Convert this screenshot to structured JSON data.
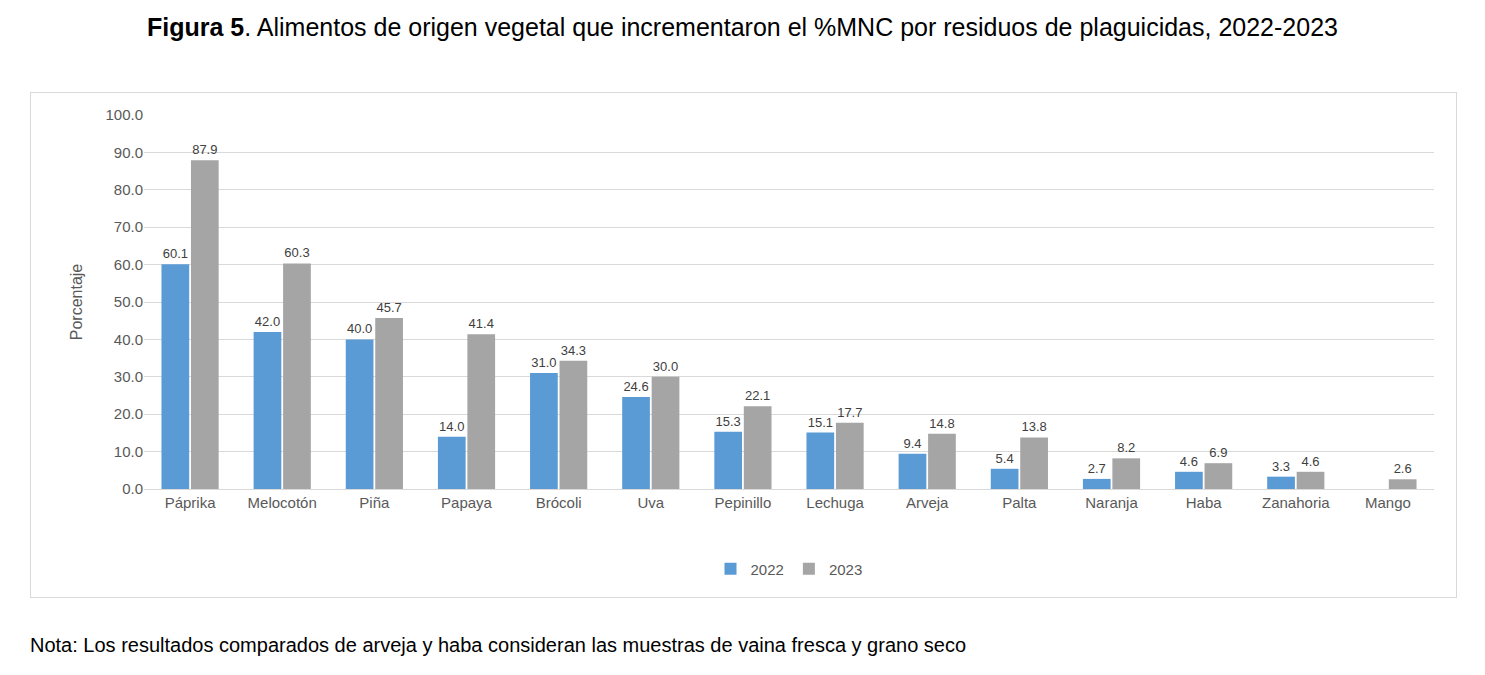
{
  "chart_data": {
    "type": "bar",
    "title": "Figura 5. Alimentos de origen vegetal que incrementaron el %MNC por residuos de plaguicidas, 2022-2023",
    "y_label": "Porcentaje",
    "annotations": [
      "Nota: Los resultados comparados de arveja y haba consideran las muestras de vaina fresca y grano seco"
    ],
    "categories": [
      "Páprika",
      "Melocotón",
      "Piña",
      "Papaya",
      "Brócoli",
      "Uva",
      "Pepinillo",
      "Lechuga",
      "Arveja",
      "Palta",
      "Naranja",
      "Haba",
      "Zanahoria",
      "Mango"
    ],
    "series": [
      {
        "name": "2022",
        "color": "#5b9bd5",
        "values": [
          60.1,
          42.0,
          40.0,
          14.0,
          31.0,
          24.6,
          15.3,
          15.1,
          9.4,
          5.4,
          2.7,
          4.6,
          3.3,
          null
        ],
        "value_labels": [
          "60.1",
          "42.0",
          "40.0",
          "14.0",
          "31.0",
          "24.6",
          "15.3",
          "15.1",
          "9.4",
          "5.4",
          "2.7",
          "4.6",
          "3.3",
          null
        ]
      },
      {
        "name": "2023",
        "color": "#a5a5a5",
        "values": [
          87.9,
          60.3,
          45.7,
          41.4,
          34.3,
          30.0,
          22.1,
          17.7,
          14.8,
          13.8,
          8.2,
          6.9,
          4.6,
          2.6
        ],
        "value_labels": [
          "87.9",
          "60.3",
          "45.7",
          "41.4",
          "34.3",
          "30.0",
          "22.1",
          "17.7",
          "14.8",
          "13.8",
          "8.2",
          "6.9",
          "4.6",
          "2.6"
        ]
      }
    ],
    "ylim": [
      0,
      100
    ],
    "yticks": [
      {
        "value": 0,
        "label": "0.0"
      },
      {
        "value": 10,
        "label": "10.0"
      },
      {
        "value": 20,
        "label": "20.0"
      },
      {
        "value": 30,
        "label": "30.0"
      },
      {
        "value": 40,
        "label": "40.0"
      },
      {
        "value": 50,
        "label": "50.0"
      },
      {
        "value": 60,
        "label": "60.0"
      },
      {
        "value": 70,
        "label": "70.0"
      },
      {
        "value": 80,
        "label": "80.0"
      },
      {
        "value": 90,
        "label": "90.0"
      },
      {
        "value": 100,
        "label": "100.0"
      }
    ],
    "grid": true,
    "legend": "bottom",
    "data_labels": true
  }
}
